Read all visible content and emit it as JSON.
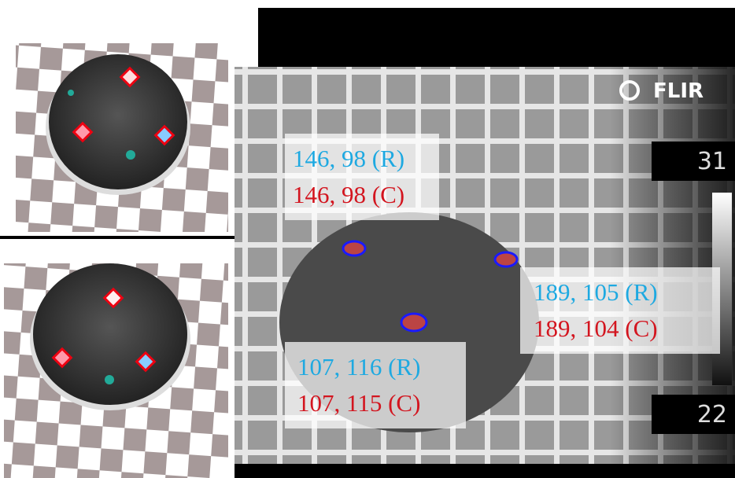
{
  "labels": [
    {
      "r": "146, 98 (R)",
      "c": "146, 98 (C)"
    },
    {
      "r": "189, 105 (R)",
      "c": "189, 104 (C)"
    },
    {
      "r": "107, 116 (R)",
      "c": "107, 115 (C)"
    }
  ],
  "camera": {
    "brand": "FLIR",
    "scale_max": "31",
    "scale_min": "22"
  }
}
